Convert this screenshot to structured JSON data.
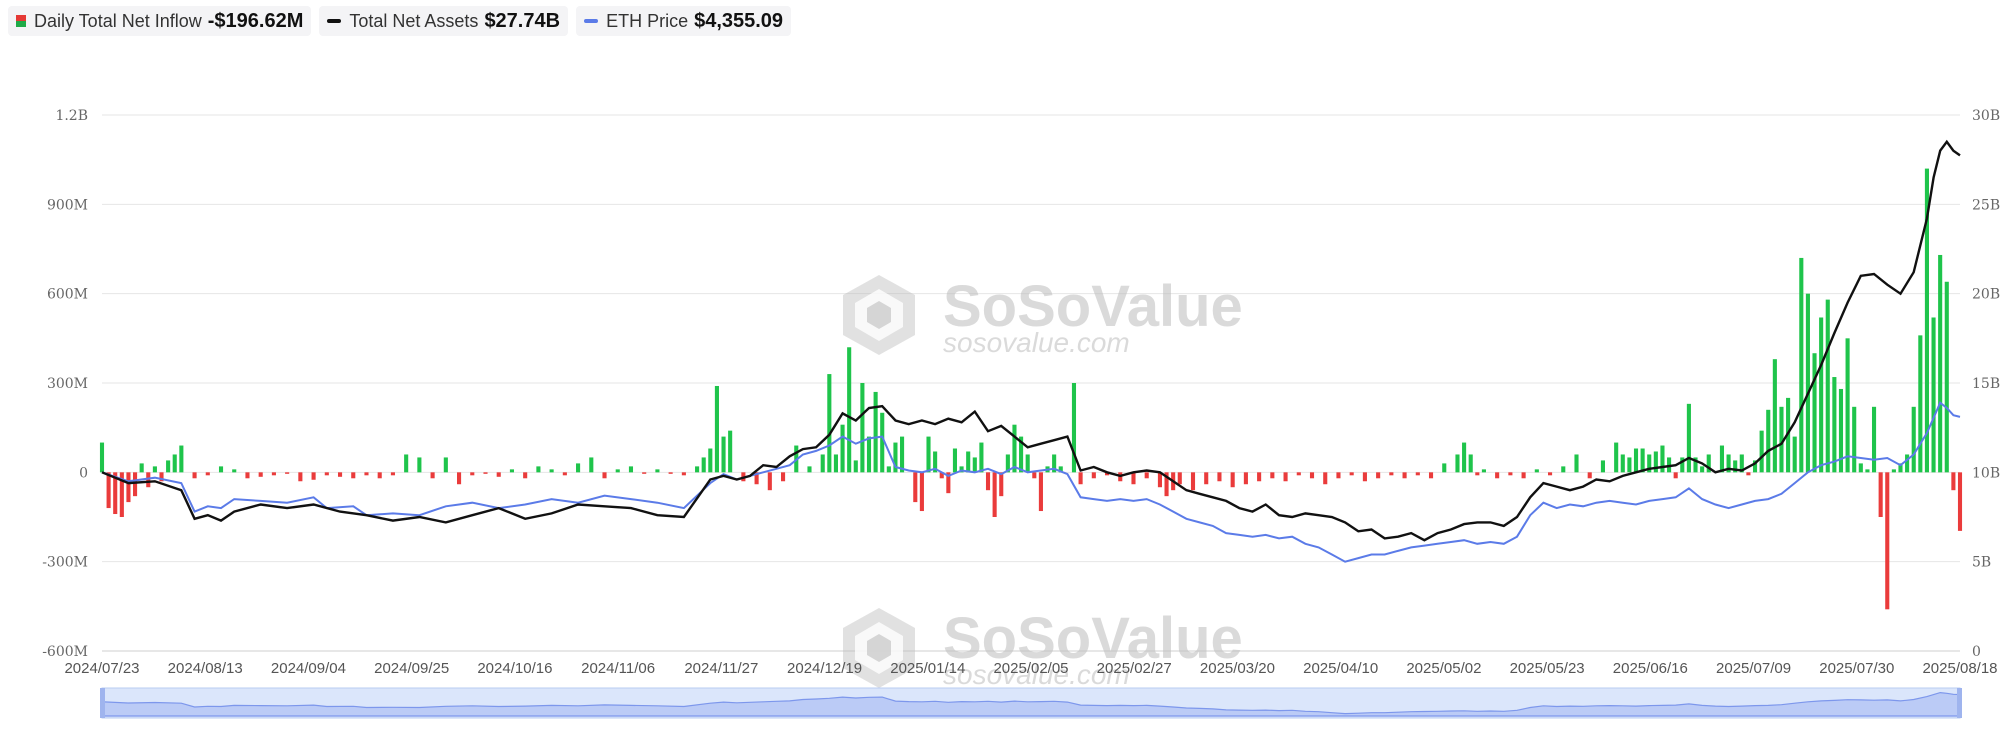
{
  "legend": {
    "inflow": {
      "label": "Daily Total Net Inflow",
      "value": "-$196.62M"
    },
    "assets": {
      "label": "Total Net Assets",
      "value": "$27.74B",
      "color": "#111111"
    },
    "price": {
      "label": "ETH Price",
      "value": "$4,355.09",
      "color": "#5b7be8"
    }
  },
  "watermark": {
    "brand": "SoSoValue",
    "url": "sosovalue.com"
  },
  "chart_data": {
    "type": "bar+line",
    "x_labels": [
      "2024/07/23",
      "2024/08/13",
      "2024/09/04",
      "2024/09/25",
      "2024/10/16",
      "2024/11/06",
      "2024/11/27",
      "2024/12/19",
      "2025/01/14",
      "2025/02/05",
      "2025/02/27",
      "2025/03/20",
      "2025/04/10",
      "2025/05/02",
      "2025/05/23",
      "2025/06/16",
      "2025/07/09",
      "2025/07/30",
      "2025/08/18"
    ],
    "y_left": {
      "ticks": [
        "1.2B",
        "900M",
        "600M",
        "300M",
        "0",
        "-300M",
        "-600M"
      ],
      "range": [
        -600,
        1200
      ],
      "unit": "M"
    },
    "y_right": {
      "ticks": [
        "30B",
        "25B",
        "20B",
        "15B",
        "10B",
        "5B",
        "0"
      ],
      "range": [
        0,
        30
      ],
      "unit": "B"
    },
    "colors": {
      "positive": "#1fc44b",
      "negative": "#ea3b3b",
      "assets": "#111111",
      "price": "#5b7be8"
    },
    "inflow_keypoints": [
      [
        0,
        100
      ],
      [
        1,
        -120
      ],
      [
        2,
        -140
      ],
      [
        3,
        -150
      ],
      [
        4,
        -100
      ],
      [
        5,
        -80
      ],
      [
        6,
        30
      ],
      [
        7,
        -50
      ],
      [
        8,
        20
      ],
      [
        9,
        -30
      ],
      [
        10,
        40
      ],
      [
        11,
        60
      ],
      [
        12,
        90
      ],
      [
        14,
        -20
      ],
      [
        16,
        -10
      ],
      [
        18,
        20
      ],
      [
        20,
        10
      ],
      [
        22,
        -20
      ],
      [
        24,
        -15
      ],
      [
        26,
        -10
      ],
      [
        28,
        -5
      ],
      [
        30,
        -30
      ],
      [
        32,
        -25
      ],
      [
        34,
        -10
      ],
      [
        36,
        -15
      ],
      [
        38,
        -20
      ],
      [
        40,
        -10
      ],
      [
        42,
        -20
      ],
      [
        44,
        -10
      ],
      [
        46,
        60
      ],
      [
        48,
        50
      ],
      [
        50,
        -20
      ],
      [
        52,
        50
      ],
      [
        54,
        -40
      ],
      [
        56,
        -10
      ],
      [
        58,
        -5
      ],
      [
        60,
        -15
      ],
      [
        62,
        10
      ],
      [
        64,
        -20
      ],
      [
        66,
        20
      ],
      [
        68,
        10
      ],
      [
        70,
        -10
      ],
      [
        72,
        30
      ],
      [
        74,
        50
      ],
      [
        76,
        -20
      ],
      [
        78,
        10
      ],
      [
        80,
        20
      ],
      [
        82,
        -5
      ],
      [
        84,
        10
      ],
      [
        86,
        -5
      ],
      [
        88,
        -10
      ],
      [
        90,
        20
      ],
      [
        91,
        50
      ],
      [
        92,
        80
      ],
      [
        93,
        290
      ],
      [
        94,
        120
      ],
      [
        95,
        140
      ],
      [
        97,
        -30
      ],
      [
        99,
        -40
      ],
      [
        101,
        -60
      ],
      [
        103,
        -30
      ],
      [
        105,
        90
      ],
      [
        107,
        20
      ],
      [
        109,
        60
      ],
      [
        110,
        330
      ],
      [
        111,
        60
      ],
      [
        112,
        160
      ],
      [
        113,
        420
      ],
      [
        114,
        40
      ],
      [
        115,
        300
      ],
      [
        116,
        120
      ],
      [
        117,
        270
      ],
      [
        118,
        200
      ],
      [
        119,
        20
      ],
      [
        120,
        100
      ],
      [
        121,
        120
      ],
      [
        123,
        -100
      ],
      [
        124,
        -130
      ],
      [
        125,
        120
      ],
      [
        126,
        70
      ],
      [
        127,
        -20
      ],
      [
        128,
        -70
      ],
      [
        129,
        80
      ],
      [
        130,
        20
      ],
      [
        131,
        70
      ],
      [
        132,
        50
      ],
      [
        133,
        100
      ],
      [
        134,
        -60
      ],
      [
        135,
        -150
      ],
      [
        136,
        -80
      ],
      [
        137,
        60
      ],
      [
        138,
        160
      ],
      [
        139,
        120
      ],
      [
        140,
        60
      ],
      [
        141,
        -20
      ],
      [
        142,
        -130
      ],
      [
        143,
        20
      ],
      [
        144,
        60
      ],
      [
        145,
        20
      ],
      [
        147,
        300
      ],
      [
        148,
        -40
      ],
      [
        150,
        -20
      ],
      [
        152,
        -10
      ],
      [
        154,
        -30
      ],
      [
        156,
        -40
      ],
      [
        158,
        -20
      ],
      [
        160,
        -50
      ],
      [
        161,
        -80
      ],
      [
        162,
        -60
      ],
      [
        163,
        -40
      ],
      [
        165,
        -60
      ],
      [
        167,
        -40
      ],
      [
        169,
        -30
      ],
      [
        171,
        -50
      ],
      [
        173,
        -40
      ],
      [
        175,
        -30
      ],
      [
        177,
        -20
      ],
      [
        179,
        -30
      ],
      [
        181,
        -10
      ],
      [
        183,
        -20
      ],
      [
        185,
        -40
      ],
      [
        187,
        -20
      ],
      [
        189,
        -10
      ],
      [
        191,
        -30
      ],
      [
        193,
        -20
      ],
      [
        195,
        -10
      ],
      [
        197,
        -20
      ],
      [
        199,
        -10
      ],
      [
        201,
        -20
      ],
      [
        203,
        30
      ],
      [
        205,
        60
      ],
      [
        206,
        100
      ],
      [
        207,
        60
      ],
      [
        208,
        -10
      ],
      [
        209,
        10
      ],
      [
        211,
        -20
      ],
      [
        213,
        -10
      ],
      [
        215,
        -20
      ],
      [
        217,
        10
      ],
      [
        219,
        -10
      ],
      [
        221,
        20
      ],
      [
        223,
        60
      ],
      [
        225,
        -20
      ],
      [
        227,
        40
      ],
      [
        229,
        100
      ],
      [
        230,
        60
      ],
      [
        231,
        50
      ],
      [
        232,
        80
      ],
      [
        233,
        80
      ],
      [
        234,
        60
      ],
      [
        235,
        70
      ],
      [
        236,
        90
      ],
      [
        237,
        50
      ],
      [
        238,
        -20
      ],
      [
        239,
        50
      ],
      [
        240,
        230
      ],
      [
        241,
        50
      ],
      [
        242,
        20
      ],
      [
        243,
        60
      ],
      [
        245,
        90
      ],
      [
        246,
        60
      ],
      [
        247,
        40
      ],
      [
        248,
        60
      ],
      [
        249,
        -10
      ],
      [
        250,
        40
      ],
      [
        251,
        140
      ],
      [
        252,
        210
      ],
      [
        253,
        380
      ],
      [
        254,
        220
      ],
      [
        255,
        250
      ],
      [
        256,
        120
      ],
      [
        257,
        720
      ],
      [
        258,
        600
      ],
      [
        259,
        400
      ],
      [
        260,
        520
      ],
      [
        261,
        580
      ],
      [
        262,
        320
      ],
      [
        263,
        280
      ],
      [
        264,
        450
      ],
      [
        265,
        220
      ],
      [
        266,
        30
      ],
      [
        267,
        10
      ],
      [
        268,
        220
      ],
      [
        269,
        -150
      ],
      [
        270,
        -460
      ],
      [
        271,
        10
      ],
      [
        272,
        30
      ],
      [
        273,
        60
      ],
      [
        274,
        220
      ],
      [
        275,
        460
      ],
      [
        276,
        1020
      ],
      [
        277,
        520
      ],
      [
        278,
        730
      ],
      [
        279,
        640
      ],
      [
        280,
        -60
      ],
      [
        281,
        -196.62
      ]
    ],
    "assets_keypoints": [
      [
        0,
        10.0
      ],
      [
        4,
        9.4
      ],
      [
        8,
        9.5
      ],
      [
        12,
        9.0
      ],
      [
        14,
        7.4
      ],
      [
        16,
        7.6
      ],
      [
        18,
        7.3
      ],
      [
        20,
        7.8
      ],
      [
        24,
        8.2
      ],
      [
        28,
        8.0
      ],
      [
        32,
        8.2
      ],
      [
        36,
        7.8
      ],
      [
        40,
        7.6
      ],
      [
        44,
        7.3
      ],
      [
        48,
        7.5
      ],
      [
        52,
        7.2
      ],
      [
        56,
        7.6
      ],
      [
        60,
        8.0
      ],
      [
        64,
        7.4
      ],
      [
        68,
        7.7
      ],
      [
        72,
        8.2
      ],
      [
        76,
        8.1
      ],
      [
        80,
        8.0
      ],
      [
        84,
        7.6
      ],
      [
        88,
        7.5
      ],
      [
        92,
        9.6
      ],
      [
        94,
        9.8
      ],
      [
        96,
        9.6
      ],
      [
        98,
        9.8
      ],
      [
        100,
        10.4
      ],
      [
        102,
        10.3
      ],
      [
        104,
        10.9
      ],
      [
        106,
        11.3
      ],
      [
        108,
        11.4
      ],
      [
        110,
        12.1
      ],
      [
        112,
        13.3
      ],
      [
        114,
        12.9
      ],
      [
        116,
        13.6
      ],
      [
        118,
        13.7
      ],
      [
        120,
        12.9
      ],
      [
        122,
        12.7
      ],
      [
        124,
        12.9
      ],
      [
        126,
        12.7
      ],
      [
        128,
        13.0
      ],
      [
        130,
        12.8
      ],
      [
        132,
        13.4
      ],
      [
        134,
        12.3
      ],
      [
        136,
        12.6
      ],
      [
        138,
        12.0
      ],
      [
        140,
        11.4
      ],
      [
        142,
        11.6
      ],
      [
        144,
        11.8
      ],
      [
        146,
        12.0
      ],
      [
        148,
        10.1
      ],
      [
        150,
        10.3
      ],
      [
        152,
        10.0
      ],
      [
        154,
        9.8
      ],
      [
        156,
        10.0
      ],
      [
        158,
        10.1
      ],
      [
        160,
        10.0
      ],
      [
        162,
        9.5
      ],
      [
        164,
        9.0
      ],
      [
        166,
        8.8
      ],
      [
        168,
        8.6
      ],
      [
        170,
        8.4
      ],
      [
        172,
        8.0
      ],
      [
        174,
        7.8
      ],
      [
        176,
        8.2
      ],
      [
        178,
        7.6
      ],
      [
        180,
        7.5
      ],
      [
        182,
        7.7
      ],
      [
        184,
        7.6
      ],
      [
        186,
        7.5
      ],
      [
        188,
        7.2
      ],
      [
        190,
        6.7
      ],
      [
        192,
        6.8
      ],
      [
        194,
        6.3
      ],
      [
        196,
        6.4
      ],
      [
        198,
        6.6
      ],
      [
        200,
        6.2
      ],
      [
        202,
        6.6
      ],
      [
        204,
        6.8
      ],
      [
        206,
        7.1
      ],
      [
        208,
        7.2
      ],
      [
        210,
        7.2
      ],
      [
        212,
        7.0
      ],
      [
        214,
        7.5
      ],
      [
        216,
        8.6
      ],
      [
        218,
        9.4
      ],
      [
        220,
        9.2
      ],
      [
        222,
        9.0
      ],
      [
        224,
        9.2
      ],
      [
        226,
        9.6
      ],
      [
        228,
        9.5
      ],
      [
        230,
        9.8
      ],
      [
        232,
        10.0
      ],
      [
        234,
        10.2
      ],
      [
        236,
        10.3
      ],
      [
        238,
        10.4
      ],
      [
        240,
        10.8
      ],
      [
        242,
        10.5
      ],
      [
        244,
        10.0
      ],
      [
        246,
        10.2
      ],
      [
        248,
        10.1
      ],
      [
        250,
        10.5
      ],
      [
        252,
        11.2
      ],
      [
        254,
        11.6
      ],
      [
        256,
        12.8
      ],
      [
        258,
        14.4
      ],
      [
        260,
        16.0
      ],
      [
        262,
        17.8
      ],
      [
        264,
        19.5
      ],
      [
        266,
        21.0
      ],
      [
        268,
        21.1
      ],
      [
        270,
        20.5
      ],
      [
        272,
        20.0
      ],
      [
        274,
        21.2
      ],
      [
        276,
        24.2
      ],
      [
        277,
        26.5
      ],
      [
        278,
        28.0
      ],
      [
        279,
        28.5
      ],
      [
        280,
        28.0
      ],
      [
        281,
        27.74
      ]
    ],
    "price_keypoints": [
      [
        0,
        10.0
      ],
      [
        4,
        9.5
      ],
      [
        8,
        9.7
      ],
      [
        12,
        9.4
      ],
      [
        14,
        7.8
      ],
      [
        16,
        8.1
      ],
      [
        18,
        8.0
      ],
      [
        20,
        8.5
      ],
      [
        24,
        8.4
      ],
      [
        28,
        8.3
      ],
      [
        32,
        8.6
      ],
      [
        34,
        8.0
      ],
      [
        38,
        8.1
      ],
      [
        40,
        7.6
      ],
      [
        44,
        7.7
      ],
      [
        48,
        7.6
      ],
      [
        52,
        8.1
      ],
      [
        56,
        8.3
      ],
      [
        60,
        8.0
      ],
      [
        64,
        8.2
      ],
      [
        68,
        8.5
      ],
      [
        72,
        8.3
      ],
      [
        76,
        8.7
      ],
      [
        80,
        8.5
      ],
      [
        84,
        8.3
      ],
      [
        88,
        8.0
      ],
      [
        92,
        9.4
      ],
      [
        94,
        9.9
      ],
      [
        96,
        9.6
      ],
      [
        98,
        9.8
      ],
      [
        100,
        10.0
      ],
      [
        102,
        10.2
      ],
      [
        104,
        10.4
      ],
      [
        106,
        11.0
      ],
      [
        108,
        11.2
      ],
      [
        110,
        11.5
      ],
      [
        112,
        12.0
      ],
      [
        114,
        11.6
      ],
      [
        116,
        11.9
      ],
      [
        118,
        12.0
      ],
      [
        120,
        10.3
      ],
      [
        122,
        10.1
      ],
      [
        124,
        10.0
      ],
      [
        126,
        10.2
      ],
      [
        128,
        9.8
      ],
      [
        130,
        10.1
      ],
      [
        132,
        10.0
      ],
      [
        134,
        10.2
      ],
      [
        136,
        9.9
      ],
      [
        138,
        10.3
      ],
      [
        140,
        10.0
      ],
      [
        142,
        10.1
      ],
      [
        144,
        10.2
      ],
      [
        146,
        9.9
      ],
      [
        148,
        8.6
      ],
      [
        150,
        8.5
      ],
      [
        152,
        8.4
      ],
      [
        154,
        8.5
      ],
      [
        156,
        8.4
      ],
      [
        158,
        8.5
      ],
      [
        160,
        8.2
      ],
      [
        162,
        7.8
      ],
      [
        164,
        7.4
      ],
      [
        166,
        7.2
      ],
      [
        168,
        7.0
      ],
      [
        170,
        6.6
      ],
      [
        172,
        6.5
      ],
      [
        174,
        6.4
      ],
      [
        176,
        6.5
      ],
      [
        178,
        6.3
      ],
      [
        180,
        6.4
      ],
      [
        182,
        6.0
      ],
      [
        184,
        5.8
      ],
      [
        186,
        5.4
      ],
      [
        188,
        5.0
      ],
      [
        190,
        5.2
      ],
      [
        192,
        5.4
      ],
      [
        194,
        5.4
      ],
      [
        196,
        5.6
      ],
      [
        198,
        5.8
      ],
      [
        200,
        5.9
      ],
      [
        202,
        6.0
      ],
      [
        204,
        6.1
      ],
      [
        206,
        6.2
      ],
      [
        208,
        6.0
      ],
      [
        210,
        6.1
      ],
      [
        212,
        6.0
      ],
      [
        214,
        6.4
      ],
      [
        216,
        7.6
      ],
      [
        218,
        8.3
      ],
      [
        220,
        8.0
      ],
      [
        222,
        8.2
      ],
      [
        224,
        8.1
      ],
      [
        226,
        8.3
      ],
      [
        228,
        8.4
      ],
      [
        230,
        8.3
      ],
      [
        232,
        8.2
      ],
      [
        234,
        8.4
      ],
      [
        236,
        8.5
      ],
      [
        238,
        8.6
      ],
      [
        240,
        9.1
      ],
      [
        242,
        8.5
      ],
      [
        244,
        8.2
      ],
      [
        246,
        8.0
      ],
      [
        248,
        8.2
      ],
      [
        250,
        8.4
      ],
      [
        252,
        8.5
      ],
      [
        254,
        8.8
      ],
      [
        256,
        9.4
      ],
      [
        258,
        10.0
      ],
      [
        260,
        10.4
      ],
      [
        262,
        10.6
      ],
      [
        264,
        10.9
      ],
      [
        266,
        10.8
      ],
      [
        268,
        10.7
      ],
      [
        270,
        10.8
      ],
      [
        272,
        10.4
      ],
      [
        274,
        11.0
      ],
      [
        276,
        12.2
      ],
      [
        278,
        13.9
      ],
      [
        279,
        13.6
      ],
      [
        280,
        13.2
      ],
      [
        281,
        13.1
      ]
    ]
  }
}
